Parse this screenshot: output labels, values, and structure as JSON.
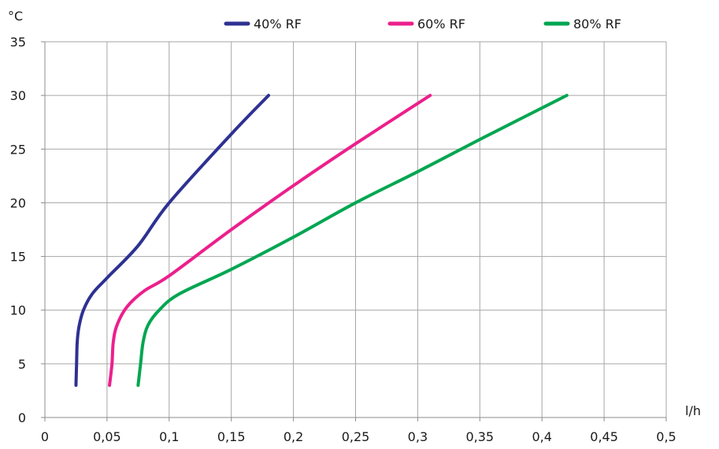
{
  "chart_data": {
    "type": "line",
    "ylabel": "°C",
    "xlabel": "l/h",
    "xlim": [
      0,
      0.5
    ],
    "ylim": [
      0,
      35
    ],
    "xticks": [
      "0",
      "0,05",
      "0,1",
      "0,15",
      "0,2",
      "0,25",
      "0,3",
      "0,35",
      "0,4",
      "0,45",
      "0,5"
    ],
    "yticks": [
      "0",
      "5",
      "10",
      "15",
      "20",
      "25",
      "30",
      "35"
    ],
    "grid": true,
    "legend_position": "top",
    "series": [
      {
        "name": "40% RF",
        "color": "#2e3192",
        "points": [
          [
            0.025,
            3
          ],
          [
            0.0255,
            5
          ],
          [
            0.026,
            7
          ],
          [
            0.0275,
            8.5
          ],
          [
            0.031,
            10
          ],
          [
            0.038,
            11.5
          ],
          [
            0.05,
            13
          ],
          [
            0.075,
            16
          ],
          [
            0.1,
            20
          ],
          [
            0.15,
            26.4
          ],
          [
            0.18,
            30
          ]
        ]
      },
      {
        "name": "60% RF",
        "color": "#ec1f8c",
        "points": [
          [
            0.052,
            3
          ],
          [
            0.054,
            5
          ],
          [
            0.055,
            7
          ],
          [
            0.058,
            8.6
          ],
          [
            0.066,
            10.3
          ],
          [
            0.08,
            11.8
          ],
          [
            0.1,
            13.2
          ],
          [
            0.15,
            17.5
          ],
          [
            0.2,
            21.6
          ],
          [
            0.25,
            25.5
          ],
          [
            0.31,
            30
          ]
        ]
      },
      {
        "name": "80% RF",
        "color": "#00a651",
        "points": [
          [
            0.075,
            3
          ],
          [
            0.077,
            5
          ],
          [
            0.079,
            7
          ],
          [
            0.083,
            8.6
          ],
          [
            0.092,
            10
          ],
          [
            0.108,
            11.5
          ],
          [
            0.15,
            13.8
          ],
          [
            0.2,
            16.8
          ],
          [
            0.25,
            20
          ],
          [
            0.3,
            22.9
          ],
          [
            0.35,
            25.9
          ],
          [
            0.42,
            30
          ]
        ]
      }
    ]
  }
}
